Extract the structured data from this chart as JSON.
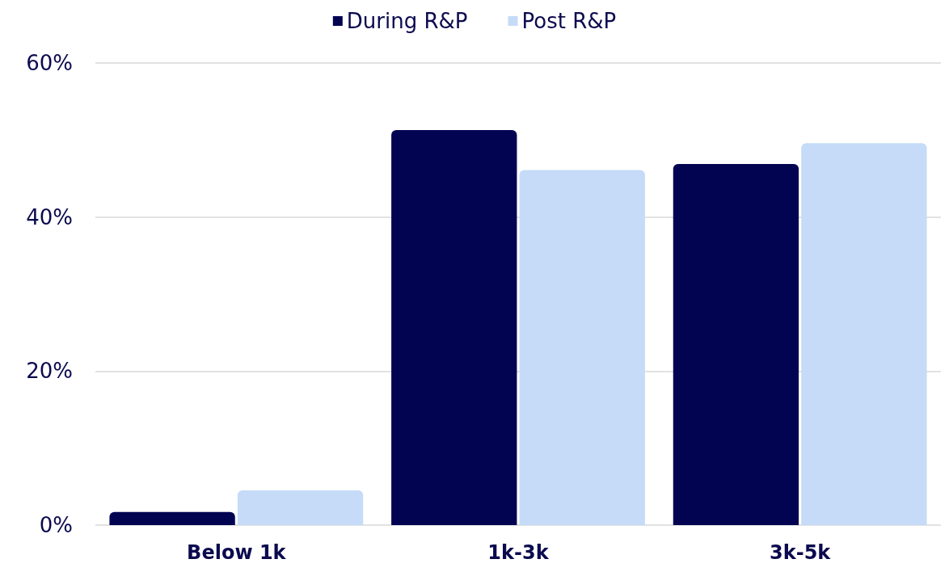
{
  "chart_data": {
    "type": "bar",
    "categories": [
      "Below 1k",
      "1k-3k",
      "3k-5k"
    ],
    "series": [
      {
        "name": "During R&P",
        "color": "#020452",
        "values": [
          1.7,
          51.3,
          46.9
        ]
      },
      {
        "name": "Post R&P",
        "color": "#c5dbf7",
        "values": [
          4.5,
          46.1,
          49.6
        ]
      }
    ],
    "ylim": [
      0,
      60
    ],
    "yticks": [
      {
        "value": 0,
        "label": "0%"
      },
      {
        "value": 20,
        "label": "20%"
      },
      {
        "value": 40,
        "label": "40%"
      },
      {
        "value": 60,
        "label": "60%"
      }
    ],
    "grid": "y",
    "legend": "top"
  }
}
